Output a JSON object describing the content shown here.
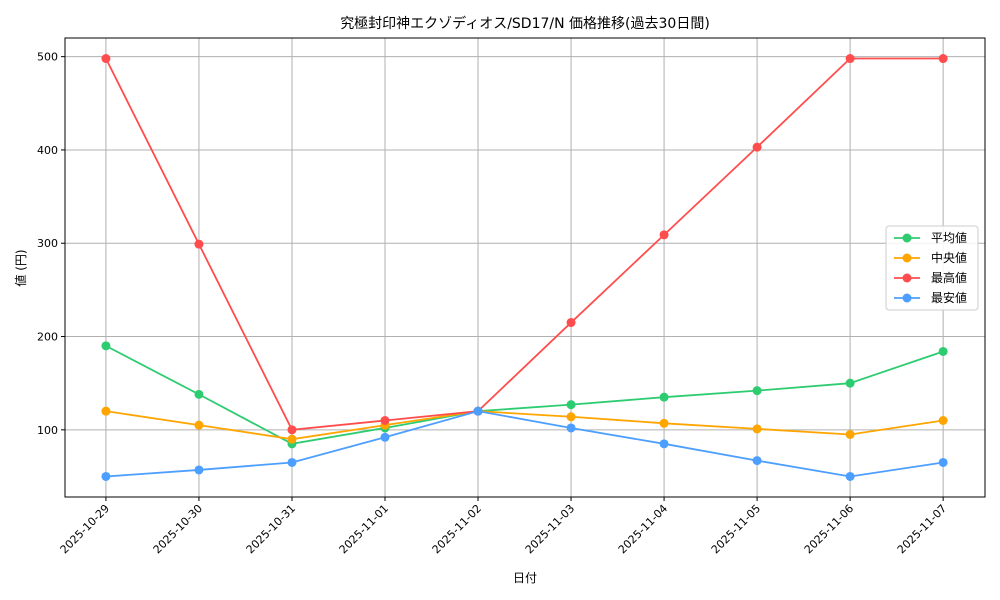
{
  "chart_data": {
    "type": "line",
    "title": "究極封印神エクゾディオス/SD17/N 価格推移(過去30日間)",
    "xlabel": "日付",
    "ylabel": "値 (円)",
    "categories": [
      "2025-10-29",
      "2025-10-30",
      "2025-10-31",
      "2025-11-01",
      "2025-11-02",
      "2025-11-03",
      "2025-11-04",
      "2025-11-05",
      "2025-11-06",
      "2025-11-07"
    ],
    "yticks": [
      100,
      200,
      300,
      400,
      500
    ],
    "ylim": [
      28,
      520
    ],
    "grid": true,
    "legend_position": "right",
    "series": [
      {
        "name": "平均値",
        "color": "#2ecc71",
        "values": [
          190,
          138,
          85,
          102,
          120,
          127,
          135,
          142,
          150,
          184
        ]
      },
      {
        "name": "中央値",
        "color": "#ffa500",
        "values": [
          120,
          105,
          90,
          105,
          120,
          114,
          107,
          101,
          95,
          110
        ]
      },
      {
        "name": "最高値",
        "color": "#ff4d4d",
        "values": [
          498,
          299,
          100,
          110,
          120,
          215,
          309,
          403,
          498,
          498
        ]
      },
      {
        "name": "最安値",
        "color": "#4d9fff",
        "values": [
          50,
          57,
          65,
          92,
          120,
          102,
          85,
          67,
          50,
          65
        ]
      }
    ]
  }
}
